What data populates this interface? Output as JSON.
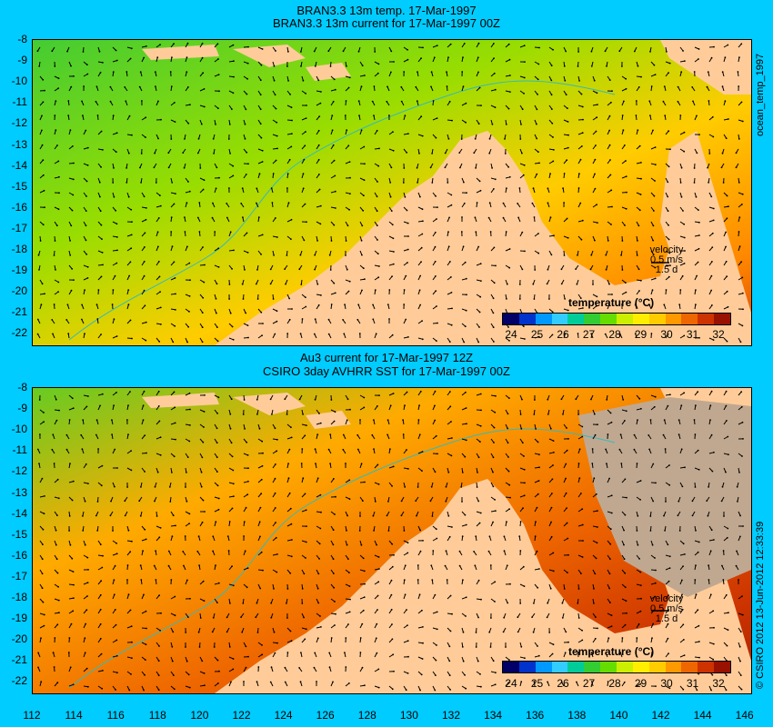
{
  "panel1": {
    "title1": "BRAN3.3 13m temp. 17-Mar-1997",
    "title2": "BRAN3.3 13m current for 17-Mar-1997 00Z",
    "side_label": "ocean_temp_1997",
    "legend_title": "temperature (°C)",
    "velocity": {
      "label": "velocity",
      "scale": "0.5 m/s",
      "time": "1.5 d"
    }
  },
  "panel2": {
    "title1": "Au3 current for 17-Mar-1997 12Z",
    "title2": "CSIRO 3day AVHRR SST for 17-Mar-1997 00Z",
    "side_label": "© CSIRO 2012  13-Jun-2012 12:33:39",
    "legend_title": "temperature (°C)",
    "velocity": {
      "label": "velocity",
      "scale": "0.5 m/s",
      "time": "1.5 d"
    }
  },
  "lat_ticks": [
    "-8",
    "-9",
    "-10",
    "-11",
    "-12",
    "-13",
    "-14",
    "-15",
    "-16",
    "-17",
    "-18",
    "-19",
    "-20",
    "-21",
    "-22"
  ],
  "lon_ticks": [
    "112",
    "114",
    "116",
    "118",
    "120",
    "122",
    "124",
    "126",
    "128",
    "130",
    "132",
    "134",
    "136",
    "138",
    "140",
    "142",
    "144",
    "146"
  ],
  "colorbar_ticks": [
    "24",
    "25",
    "26",
    "27",
    "28",
    "29",
    "30",
    "31",
    "32"
  ],
  "colors": {
    "background": "#00ccff",
    "land": "#ffcc99",
    "nodata": "#c0a890",
    "colormap": [
      "#000066",
      "#0033cc",
      "#0099ff",
      "#33ccff",
      "#00cc99",
      "#33cc33",
      "#66dd00",
      "#ccee00",
      "#ffee00",
      "#ffcc00",
      "#ff9900",
      "#ee6600",
      "#cc3300",
      "#991100"
    ]
  }
}
